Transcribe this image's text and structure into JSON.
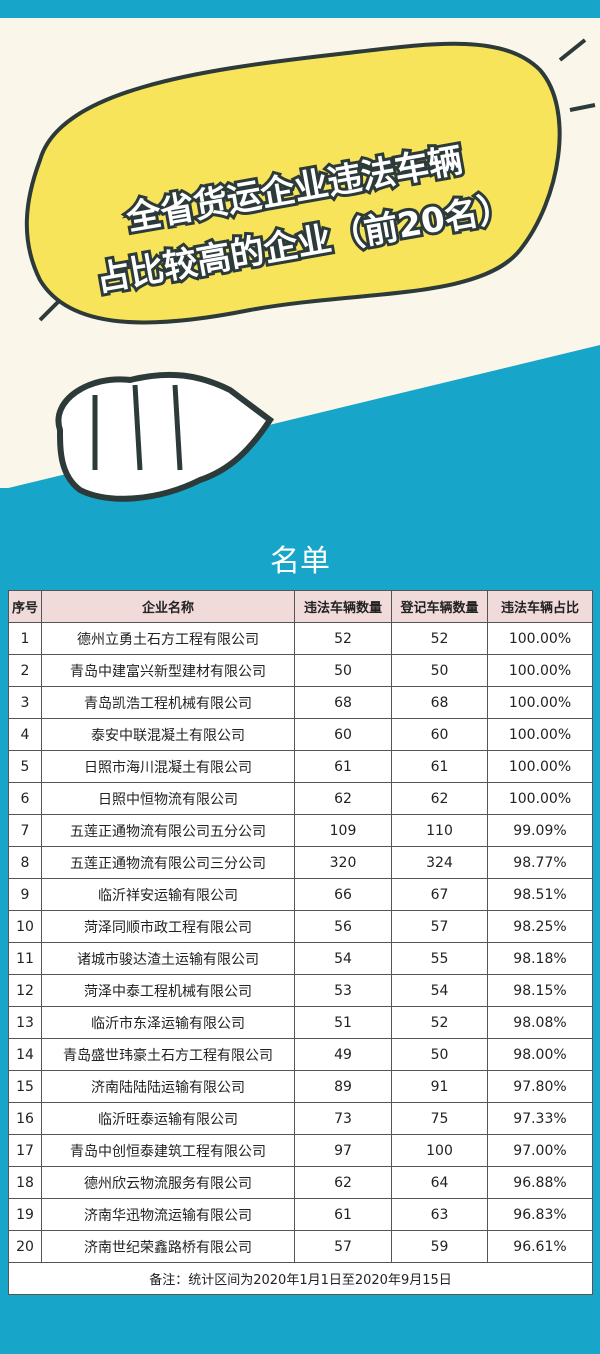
{
  "header": {
    "title_lines": [
      "全省货运企业违法车辆",
      "占比较高的企业（前20名）"
    ]
  },
  "list_title": "名单",
  "table": {
    "header": [
      "序号",
      "企业名称",
      "违法车辆数量",
      "登记车辆数量",
      "违法车辆占比"
    ],
    "rows": [
      [
        "1",
        "德州立勇土石方工程有限公司",
        "52",
        "52",
        "100.00%"
      ],
      [
        "2",
        "青岛中建富兴新型建材有限公司",
        "50",
        "50",
        "100.00%"
      ],
      [
        "3",
        "青岛凯浩工程机械有限公司",
        "68",
        "68",
        "100.00%"
      ],
      [
        "4",
        "泰安中联混凝土有限公司",
        "60",
        "60",
        "100.00%"
      ],
      [
        "5",
        "日照市海川混凝土有限公司",
        "61",
        "61",
        "100.00%"
      ],
      [
        "6",
        "日照中恒物流有限公司",
        "62",
        "62",
        "100.00%"
      ],
      [
        "7",
        "五莲正通物流有限公司五分公司",
        "109",
        "110",
        "99.09%"
      ],
      [
        "8",
        "五莲正通物流有限公司三分公司",
        "320",
        "324",
        "98.77%"
      ],
      [
        "9",
        "临沂祥安运输有限公司",
        "66",
        "67",
        "98.51%"
      ],
      [
        "10",
        "菏泽同顺市政工程有限公司",
        "56",
        "57",
        "98.25%"
      ],
      [
        "11",
        "诸城市骏达渣土运输有限公司",
        "54",
        "55",
        "98.18%"
      ],
      [
        "12",
        "菏泽中泰工程机械有限公司",
        "53",
        "54",
        "98.15%"
      ],
      [
        "13",
        "临沂市东泽运输有限公司",
        "51",
        "52",
        "98.08%"
      ],
      [
        "14",
        "青岛盛世玮豪土石方工程有限公司",
        "49",
        "50",
        "98.00%"
      ],
      [
        "15",
        "济南陆陆陆运输有限公司",
        "89",
        "91",
        "97.80%"
      ],
      [
        "16",
        "临沂旺泰运输有限公司",
        "73",
        "75",
        "97.33%"
      ],
      [
        "17",
        "青岛中创恒泰建筑工程有限公司",
        "97",
        "100",
        "97.00%"
      ],
      [
        "18",
        "德州欣云物流服务有限公司",
        "62",
        "64",
        "96.88%"
      ],
      [
        "19",
        "济南华迅物流运输有限公司",
        "61",
        "63",
        "96.83%"
      ],
      [
        "20",
        "济南世纪荣鑫路桥有限公司",
        "57",
        "59",
        "96.61%"
      ]
    ],
    "footnote": "备注：统计区间为2020年1月1日至2020年9月15日"
  }
}
